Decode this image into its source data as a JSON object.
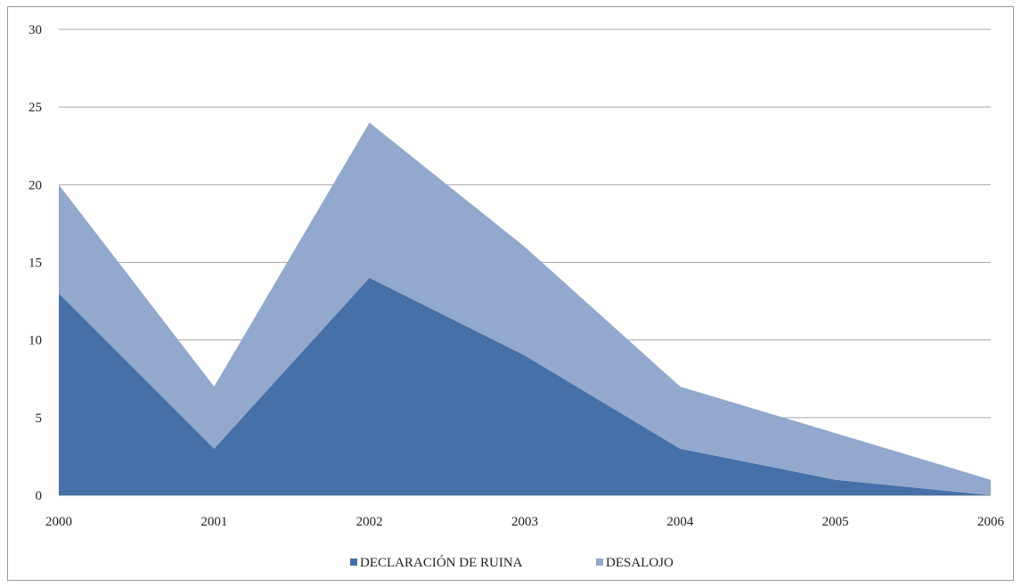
{
  "chart_data": {
    "type": "area",
    "stacked": true,
    "categories": [
      "2000",
      "2001",
      "2002",
      "2003",
      "2004",
      "2005",
      "2006"
    ],
    "series": [
      {
        "name": "DECLARACIÓN DE RUINA",
        "values": [
          13,
          3,
          14,
          9,
          3,
          1,
          0
        ],
        "color": "#4670a8"
      },
      {
        "name": "DESALOJO",
        "values": [
          7,
          4,
          10,
          7,
          4,
          3,
          1
        ],
        "color": "#93a8cd"
      }
    ],
    "title": "",
    "xlabel": "",
    "ylabel": "",
    "ylim": [
      0,
      30
    ],
    "yticks": [
      "0",
      "5",
      "10",
      "15",
      "20",
      "25",
      "30"
    ],
    "grid": true,
    "legend_position": "bottom"
  }
}
